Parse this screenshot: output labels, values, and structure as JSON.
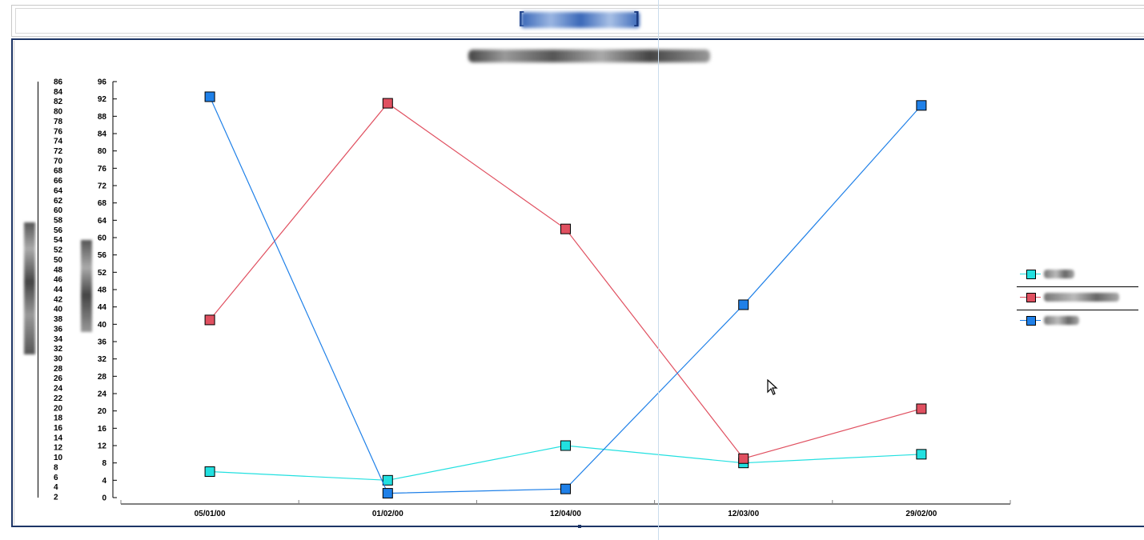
{
  "chart_data": {
    "type": "line",
    "categories": [
      "05/01/00",
      "01/02/00",
      "12/04/00",
      "12/03/00",
      "29/02/00"
    ],
    "series": [
      {
        "color": "#22e0e0",
        "values": [
          6,
          4,
          12,
          8,
          10
        ]
      },
      {
        "color": "#e05060",
        "values": [
          41,
          91,
          62,
          9,
          20.5
        ]
      },
      {
        "color": "#1f80e8",
        "values": [
          92.5,
          1,
          2,
          44.5,
          90.5
        ]
      }
    ],
    "y_primary": {
      "ylim": [
        0,
        96
      ],
      "ticks": [
        0,
        4,
        8,
        12,
        16,
        20,
        24,
        28,
        32,
        36,
        40,
        44,
        48,
        52,
        56,
        60,
        64,
        68,
        72,
        76,
        80,
        84,
        88,
        92,
        96
      ]
    },
    "y_secondary": {
      "ylim": [
        2,
        86
      ],
      "ticks": [
        2,
        4,
        6,
        8,
        10,
        12,
        14,
        16,
        18,
        20,
        22,
        24,
        26,
        28,
        30,
        32,
        34,
        36,
        38,
        40,
        42,
        44,
        46,
        48,
        50,
        52,
        54,
        56,
        58,
        60,
        62,
        64,
        66,
        68,
        70,
        72,
        74,
        76,
        78,
        80,
        82,
        84,
        86
      ]
    },
    "legend_position": "right",
    "grid": false
  },
  "icons": {
    "cursor": "mouse-pointer-icon"
  }
}
